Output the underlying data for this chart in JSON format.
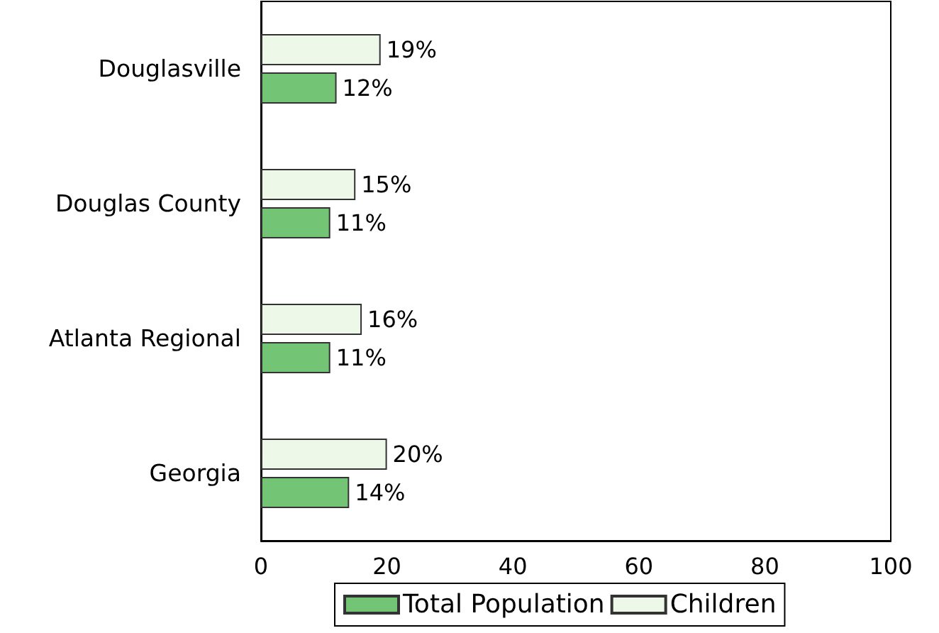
{
  "chart_data": {
    "type": "bar",
    "orientation": "horizontal",
    "categories": [
      "Douglasville",
      "Douglas County",
      "Atlanta Regional",
      "Georgia"
    ],
    "series": [
      {
        "name": "Total Population",
        "color": "#74c476",
        "values": [
          12,
          11,
          11,
          14
        ],
        "value_labels": [
          "12%",
          "11%",
          "11%",
          "14%"
        ]
      },
      {
        "name": "Children",
        "color": "#edf8e9",
        "values": [
          19,
          15,
          16,
          20
        ],
        "value_labels": [
          "19%",
          "15%",
          "16%",
          "20%"
        ]
      }
    ],
    "xlim": [
      0,
      100
    ],
    "xticks": [
      0,
      20,
      40,
      60,
      80,
      100
    ],
    "grid": false,
    "legend": "bottom"
  }
}
